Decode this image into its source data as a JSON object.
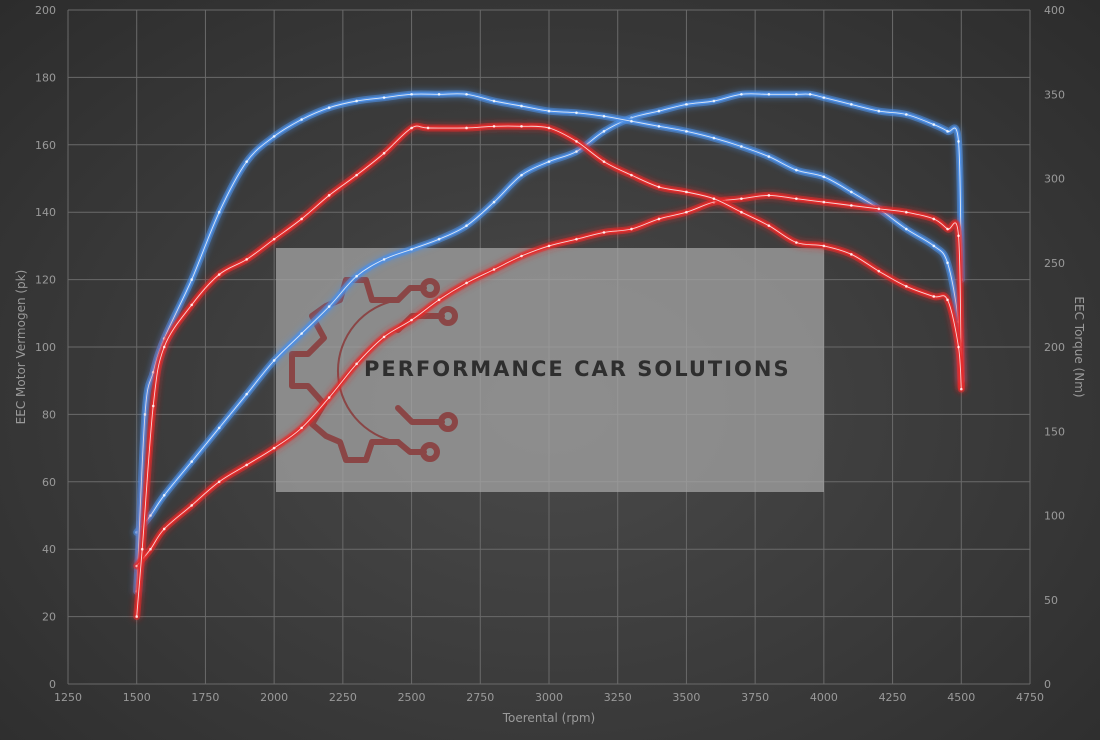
{
  "chart_data": {
    "type": "line",
    "xlabel": "Toerental (rpm)",
    "ylabel_left": "EEC Motor Vermogen (pk)",
    "ylabel_right": "EEC Torque (Nm)",
    "xlim": [
      1250,
      4750
    ],
    "ylim_left": [
      0,
      200
    ],
    "ylim_right": [
      0,
      400
    ],
    "x_ticks": [
      1250,
      1500,
      1750,
      2000,
      2250,
      2500,
      2750,
      3000,
      3250,
      3500,
      3750,
      4000,
      4250,
      4500,
      4750
    ],
    "y_ticks_left": [
      0,
      20,
      40,
      60,
      80,
      100,
      120,
      140,
      160,
      180,
      200
    ],
    "y_ticks_right": [
      0,
      50,
      100,
      150,
      200,
      250,
      300,
      350,
      400
    ],
    "grid": true,
    "legend": "none",
    "series": [
      {
        "axis": "left",
        "color": "#4d8fe6",
        "points": [
          [
            1500,
            45
          ],
          [
            1550,
            50
          ],
          [
            1600,
            56
          ],
          [
            1700,
            66
          ],
          [
            1800,
            76
          ],
          [
            1900,
            86
          ],
          [
            2000,
            96
          ],
          [
            2100,
            104
          ],
          [
            2200,
            112
          ],
          [
            2300,
            121
          ],
          [
            2400,
            126
          ],
          [
            2500,
            129
          ],
          [
            2600,
            132
          ],
          [
            2700,
            136
          ],
          [
            2800,
            143
          ],
          [
            2900,
            151
          ],
          [
            3000,
            155
          ],
          [
            3100,
            158
          ],
          [
            3200,
            164
          ],
          [
            3300,
            168
          ],
          [
            3400,
            170
          ],
          [
            3500,
            172
          ],
          [
            3600,
            173
          ],
          [
            3700,
            175
          ],
          [
            3800,
            175
          ],
          [
            3900,
            175
          ],
          [
            3950,
            175
          ],
          [
            4000,
            174
          ],
          [
            4100,
            172
          ],
          [
            4200,
            170
          ],
          [
            4300,
            169
          ],
          [
            4400,
            166
          ],
          [
            4450,
            164
          ],
          [
            4490,
            161
          ],
          [
            4500,
            120
          ]
        ]
      },
      {
        "axis": "right",
        "color": "#4d8fe6",
        "points": [
          [
            1500,
            55
          ],
          [
            1530,
            160
          ],
          [
            1560,
            185
          ],
          [
            1600,
            205
          ],
          [
            1700,
            240
          ],
          [
            1800,
            280
          ],
          [
            1900,
            310
          ],
          [
            2000,
            325
          ],
          [
            2100,
            335
          ],
          [
            2200,
            342
          ],
          [
            2300,
            346
          ],
          [
            2400,
            348
          ],
          [
            2500,
            350
          ],
          [
            2600,
            350
          ],
          [
            2700,
            350
          ],
          [
            2800,
            346
          ],
          [
            2900,
            343
          ],
          [
            3000,
            340
          ],
          [
            3100,
            339
          ],
          [
            3200,
            337
          ],
          [
            3300,
            334
          ],
          [
            3400,
            331
          ],
          [
            3500,
            328
          ],
          [
            3600,
            324
          ],
          [
            3700,
            319
          ],
          [
            3800,
            313
          ],
          [
            3900,
            305
          ],
          [
            4000,
            301
          ],
          [
            4100,
            292
          ],
          [
            4200,
            282
          ],
          [
            4300,
            270
          ],
          [
            4400,
            260
          ],
          [
            4450,
            250
          ],
          [
            4490,
            215
          ],
          [
            4500,
            180
          ]
        ]
      },
      {
        "axis": "left",
        "color": "#e62b2b",
        "points": [
          [
            1500,
            35
          ],
          [
            1550,
            40
          ],
          [
            1600,
            46
          ],
          [
            1700,
            53
          ],
          [
            1800,
            60
          ],
          [
            1900,
            65
          ],
          [
            2000,
            70
          ],
          [
            2100,
            76
          ],
          [
            2200,
            85
          ],
          [
            2300,
            95
          ],
          [
            2400,
            103
          ],
          [
            2500,
            108
          ],
          [
            2600,
            114
          ],
          [
            2700,
            119
          ],
          [
            2800,
            123
          ],
          [
            2900,
            127
          ],
          [
            3000,
            130
          ],
          [
            3100,
            132
          ],
          [
            3200,
            134
          ],
          [
            3300,
            135
          ],
          [
            3400,
            138
          ],
          [
            3500,
            140
          ],
          [
            3600,
            143
          ],
          [
            3700,
            144
          ],
          [
            3800,
            145
          ],
          [
            3900,
            144
          ],
          [
            4000,
            143
          ],
          [
            4100,
            142
          ],
          [
            4200,
            141
          ],
          [
            4300,
            140
          ],
          [
            4400,
            138
          ],
          [
            4450,
            135
          ],
          [
            4490,
            133
          ],
          [
            4500,
            88
          ]
        ]
      },
      {
        "axis": "right",
        "color": "#e62b2b",
        "points": [
          [
            1500,
            40
          ],
          [
            1520,
            80
          ],
          [
            1560,
            165
          ],
          [
            1600,
            200
          ],
          [
            1700,
            225
          ],
          [
            1800,
            243
          ],
          [
            1900,
            252
          ],
          [
            2000,
            264
          ],
          [
            2100,
            276
          ],
          [
            2200,
            290
          ],
          [
            2300,
            302
          ],
          [
            2400,
            315
          ],
          [
            2500,
            330
          ],
          [
            2560,
            330
          ],
          [
            2700,
            330
          ],
          [
            2800,
            331
          ],
          [
            2900,
            331
          ],
          [
            3000,
            330
          ],
          [
            3100,
            322
          ],
          [
            3200,
            310
          ],
          [
            3300,
            302
          ],
          [
            3400,
            295
          ],
          [
            3500,
            292
          ],
          [
            3600,
            288
          ],
          [
            3700,
            280
          ],
          [
            3800,
            272
          ],
          [
            3900,
            262
          ],
          [
            4000,
            260
          ],
          [
            4100,
            255
          ],
          [
            4200,
            245
          ],
          [
            4300,
            236
          ],
          [
            4400,
            230
          ],
          [
            4450,
            228
          ],
          [
            4490,
            200
          ],
          [
            4500,
            175
          ]
        ]
      }
    ]
  },
  "watermark": {
    "brand_text": "PERFORMANCE CAR SOLUTIONS",
    "logo_color": "#8a3f3f",
    "panel_color": "#a8a8a8"
  }
}
